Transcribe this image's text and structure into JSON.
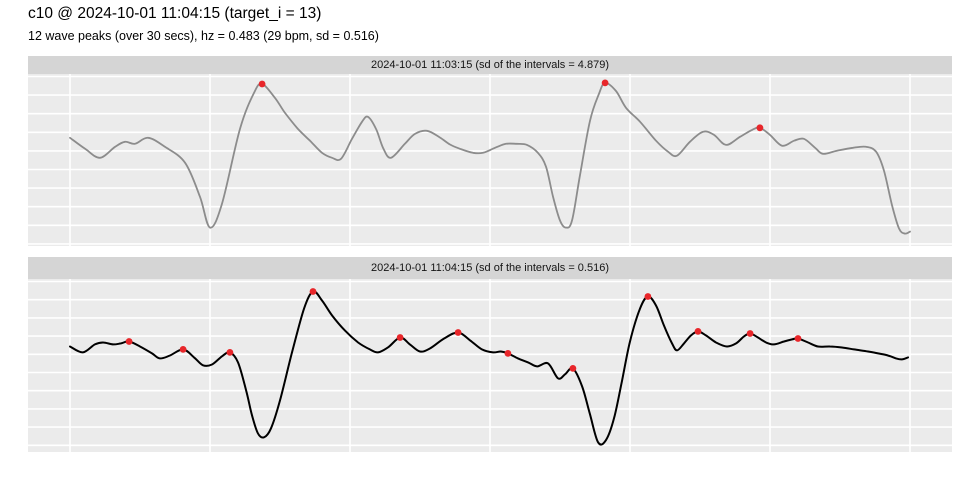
{
  "header": {
    "title": "c10 @ 2024-10-01 11:04:15 (target_i = 13)",
    "subtitle": "12 wave peaks (over 30 secs), hz = 0.483 (29 bpm, sd = 0.516)"
  },
  "colors": {
    "strip_bg": "#d5d5d5",
    "panel_bg": "#ebebeb",
    "gridline": "#ffffff",
    "peak_dot": "#e8262a",
    "line_facet1": "#8c8c8c",
    "line_facet2": "#000000"
  },
  "chart_data": {
    "type": "line",
    "title": "c10 @ 2024-10-01 11:04:15 (target_i = 13)",
    "subtitle": "12 wave peaks (over 30 secs), hz = 0.483 (29 bpm, sd = 0.516)",
    "x_unit": "seconds",
    "x_range": [
      0,
      30
    ],
    "y_unit": "normalized amplitude (no axis tick labels shown in figure)",
    "y_range": [
      0,
      1
    ],
    "x_gridlines_sec": [
      0,
      5,
      10,
      15,
      20,
      25,
      30
    ],
    "grid": "white gridlines on gray panel background, axes unlabeled",
    "legend": "none",
    "facets": [
      {
        "strip_label": "2024-10-01 11:03:15 (sd of the intervals = 4.879)",
        "line_color": "#8c8c8c",
        "peak_count": 3,
        "sd_of_intervals": 4.879,
        "series": [
          [
            0.0,
            0.629
          ],
          [
            0.54,
            0.565
          ],
          [
            1.07,
            0.513
          ],
          [
            1.61,
            0.577
          ],
          [
            1.96,
            0.606
          ],
          [
            2.32,
            0.594
          ],
          [
            2.79,
            0.629
          ],
          [
            3.39,
            0.577
          ],
          [
            4.11,
            0.484
          ],
          [
            4.64,
            0.287
          ],
          [
            5.0,
            0.107
          ],
          [
            5.43,
            0.246
          ],
          [
            6.07,
            0.681
          ],
          [
            6.57,
            0.89
          ],
          [
            6.86,
            0.942
          ],
          [
            7.32,
            0.861
          ],
          [
            7.68,
            0.774
          ],
          [
            8.14,
            0.681
          ],
          [
            8.57,
            0.612
          ],
          [
            9.0,
            0.542
          ],
          [
            9.36,
            0.513
          ],
          [
            9.68,
            0.507
          ],
          [
            10.07,
            0.623
          ],
          [
            10.43,
            0.722
          ],
          [
            10.64,
            0.751
          ],
          [
            10.93,
            0.681
          ],
          [
            11.18,
            0.571
          ],
          [
            11.46,
            0.513
          ],
          [
            11.96,
            0.594
          ],
          [
            12.32,
            0.652
          ],
          [
            12.75,
            0.67
          ],
          [
            13.21,
            0.631
          ],
          [
            13.57,
            0.59
          ],
          [
            13.93,
            0.565
          ],
          [
            14.39,
            0.542
          ],
          [
            14.75,
            0.542
          ],
          [
            15.18,
            0.571
          ],
          [
            15.57,
            0.594
          ],
          [
            15.96,
            0.594
          ],
          [
            16.32,
            0.588
          ],
          [
            16.71,
            0.542
          ],
          [
            17.0,
            0.461
          ],
          [
            17.25,
            0.287
          ],
          [
            17.5,
            0.148
          ],
          [
            17.71,
            0.107
          ],
          [
            17.93,
            0.148
          ],
          [
            18.21,
            0.409
          ],
          [
            18.57,
            0.728
          ],
          [
            18.89,
            0.884
          ],
          [
            19.11,
            0.948
          ],
          [
            19.5,
            0.901
          ],
          [
            19.86,
            0.803
          ],
          [
            20.36,
            0.722
          ],
          [
            20.93,
            0.612
          ],
          [
            21.36,
            0.548
          ],
          [
            21.68,
            0.525
          ],
          [
            22.14,
            0.606
          ],
          [
            22.61,
            0.664
          ],
          [
            23.0,
            0.646
          ],
          [
            23.43,
            0.588
          ],
          [
            23.93,
            0.635
          ],
          [
            24.36,
            0.675
          ],
          [
            24.64,
            0.687
          ],
          [
            25.0,
            0.646
          ],
          [
            25.43,
            0.583
          ],
          [
            25.86,
            0.612
          ],
          [
            26.21,
            0.623
          ],
          [
            26.61,
            0.571
          ],
          [
            26.89,
            0.536
          ],
          [
            27.39,
            0.554
          ],
          [
            27.96,
            0.571
          ],
          [
            28.43,
            0.577
          ],
          [
            28.79,
            0.548
          ],
          [
            29.07,
            0.438
          ],
          [
            29.36,
            0.235
          ],
          [
            29.61,
            0.101
          ],
          [
            29.82,
            0.072
          ],
          [
            30.0,
            0.084
          ]
        ],
        "peaks": [
          [
            6.86,
            0.942
          ],
          [
            19.11,
            0.948
          ],
          [
            24.64,
            0.687
          ]
        ]
      },
      {
        "strip_label": "2024-10-01 11:04:15 (sd of the intervals = 0.516)",
        "line_color": "#000000",
        "peak_count": 12,
        "sd_of_intervals": 0.516,
        "series": [
          [
            0.0,
            0.61
          ],
          [
            0.46,
            0.576
          ],
          [
            0.89,
            0.622
          ],
          [
            1.18,
            0.633
          ],
          [
            1.54,
            0.622
          ],
          [
            1.82,
            0.628
          ],
          [
            2.11,
            0.639
          ],
          [
            2.5,
            0.61
          ],
          [
            2.93,
            0.57
          ],
          [
            3.21,
            0.541
          ],
          [
            3.57,
            0.558
          ],
          [
            4.04,
            0.593
          ],
          [
            4.43,
            0.547
          ],
          [
            4.75,
            0.501
          ],
          [
            5.07,
            0.506
          ],
          [
            5.43,
            0.553
          ],
          [
            5.71,
            0.576
          ],
          [
            6.0,
            0.518
          ],
          [
            6.29,
            0.356
          ],
          [
            6.5,
            0.212
          ],
          [
            6.71,
            0.108
          ],
          [
            6.93,
            0.085
          ],
          [
            7.18,
            0.137
          ],
          [
            7.5,
            0.298
          ],
          [
            7.93,
            0.576
          ],
          [
            8.36,
            0.83
          ],
          [
            8.68,
            0.928
          ],
          [
            9.0,
            0.876
          ],
          [
            9.36,
            0.789
          ],
          [
            9.82,
            0.702
          ],
          [
            10.29,
            0.633
          ],
          [
            10.71,
            0.593
          ],
          [
            11.0,
            0.576
          ],
          [
            11.36,
            0.605
          ],
          [
            11.79,
            0.662
          ],
          [
            12.14,
            0.622
          ],
          [
            12.5,
            0.581
          ],
          [
            12.86,
            0.599
          ],
          [
            13.36,
            0.656
          ],
          [
            13.86,
            0.691
          ],
          [
            14.29,
            0.645
          ],
          [
            14.71,
            0.593
          ],
          [
            15.11,
            0.576
          ],
          [
            15.39,
            0.581
          ],
          [
            15.64,
            0.57
          ],
          [
            16.0,
            0.541
          ],
          [
            16.36,
            0.518
          ],
          [
            16.68,
            0.495
          ],
          [
            17.07,
            0.512
          ],
          [
            17.43,
            0.426
          ],
          [
            17.68,
            0.449
          ],
          [
            17.96,
            0.483
          ],
          [
            18.29,
            0.379
          ],
          [
            18.57,
            0.218
          ],
          [
            18.86,
            0.056
          ],
          [
            19.14,
            0.068
          ],
          [
            19.43,
            0.195
          ],
          [
            19.71,
            0.408
          ],
          [
            20.0,
            0.639
          ],
          [
            20.36,
            0.83
          ],
          [
            20.64,
            0.899
          ],
          [
            20.93,
            0.847
          ],
          [
            21.21,
            0.732
          ],
          [
            21.5,
            0.628
          ],
          [
            21.68,
            0.587
          ],
          [
            21.93,
            0.628
          ],
          [
            22.18,
            0.674
          ],
          [
            22.43,
            0.697
          ],
          [
            22.71,
            0.674
          ],
          [
            23.07,
            0.633
          ],
          [
            23.46,
            0.61
          ],
          [
            23.79,
            0.628
          ],
          [
            24.07,
            0.668
          ],
          [
            24.29,
            0.685
          ],
          [
            24.57,
            0.662
          ],
          [
            24.86,
            0.633
          ],
          [
            25.14,
            0.622
          ],
          [
            25.5,
            0.639
          ],
          [
            25.79,
            0.651
          ],
          [
            26.0,
            0.656
          ],
          [
            26.36,
            0.633
          ],
          [
            26.71,
            0.61
          ],
          [
            27.14,
            0.61
          ],
          [
            27.57,
            0.604
          ],
          [
            28.0,
            0.593
          ],
          [
            28.5,
            0.581
          ],
          [
            28.86,
            0.57
          ],
          [
            29.21,
            0.558
          ],
          [
            29.5,
            0.541
          ],
          [
            29.71,
            0.535
          ],
          [
            29.93,
            0.547
          ]
        ],
        "peaks": [
          [
            2.11,
            0.639
          ],
          [
            4.04,
            0.593
          ],
          [
            5.71,
            0.576
          ],
          [
            8.68,
            0.928
          ],
          [
            11.79,
            0.662
          ],
          [
            13.86,
            0.691
          ],
          [
            15.64,
            0.57
          ],
          [
            17.96,
            0.483
          ],
          [
            20.64,
            0.899
          ],
          [
            22.43,
            0.697
          ],
          [
            24.29,
            0.685
          ],
          [
            26.0,
            0.656
          ]
        ]
      }
    ]
  }
}
